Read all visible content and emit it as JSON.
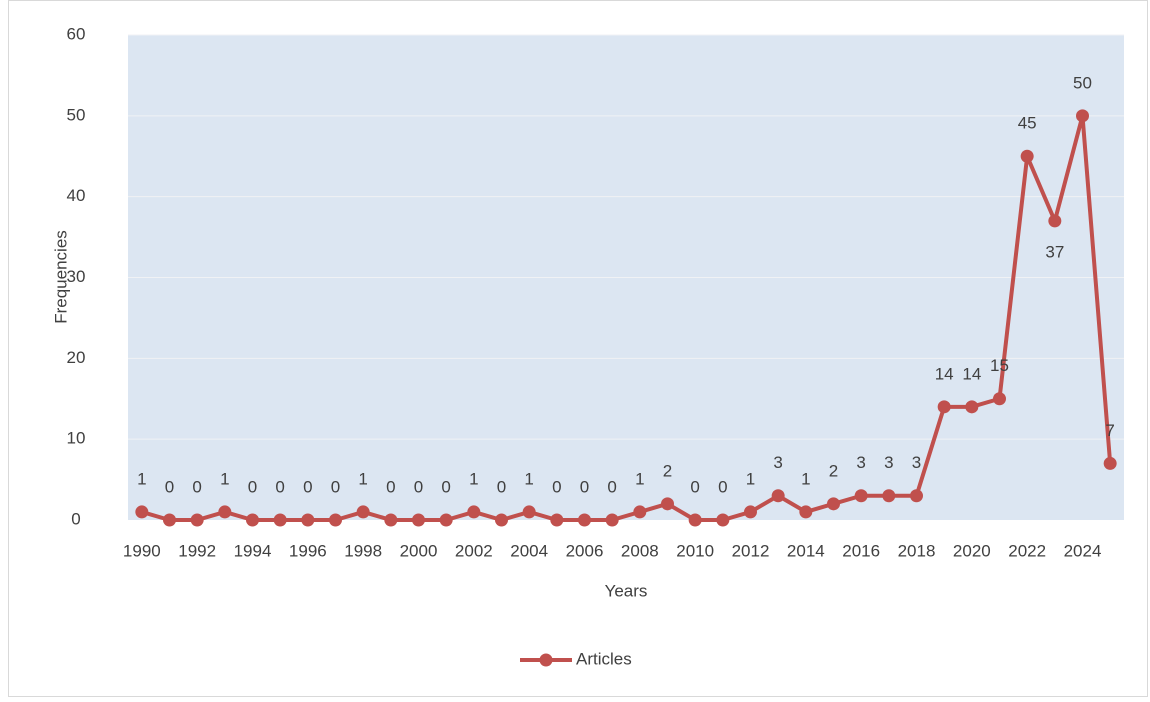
{
  "chart_data": {
    "type": "line",
    "xlabel": "Years",
    "ylabel": "Frequencies",
    "categories": [
      "1990",
      null,
      "1992",
      null,
      "1994",
      null,
      "1996",
      null,
      "1998",
      null,
      "2000",
      null,
      "2002",
      null,
      "2004",
      null,
      "2006",
      null,
      "2008",
      null,
      "2010",
      null,
      "2012",
      null,
      "2014",
      null,
      "2016",
      null,
      "2018",
      null,
      "2020",
      null,
      "2022",
      null,
      "2024",
      null
    ],
    "series": [
      {
        "name": "Articles",
        "color": "#c0504d",
        "values": [
          1,
          0,
          0,
          1,
          0,
          0,
          0,
          0,
          1,
          0,
          0,
          0,
          1,
          0,
          1,
          0,
          0,
          0,
          1,
          2,
          0,
          0,
          1,
          3,
          1,
          2,
          3,
          3,
          3,
          14,
          14,
          15,
          45,
          37,
          50,
          7
        ]
      }
    ],
    "ylim": [
      0,
      60
    ],
    "yticks": [
      0,
      10,
      20,
      30,
      40,
      50,
      60
    ],
    "grid": true,
    "legend": "bottom"
  }
}
